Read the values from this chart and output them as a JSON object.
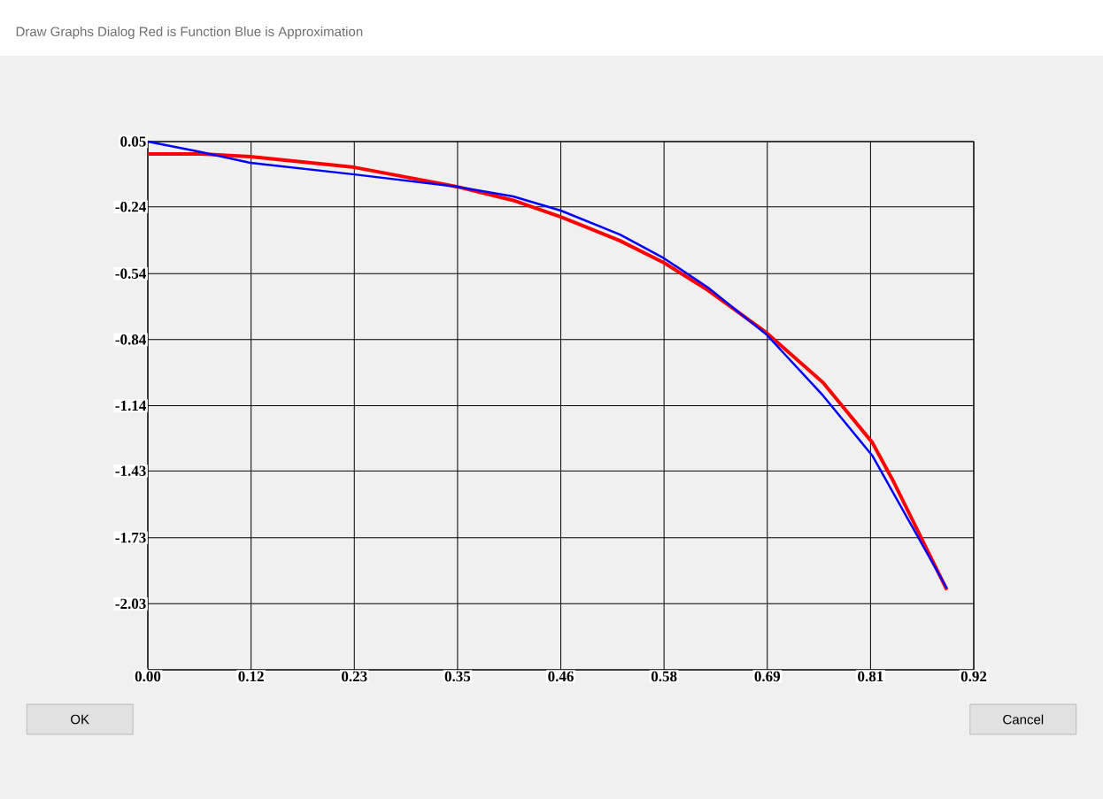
{
  "chart_data": {
    "type": "line",
    "title": "Draw Graphs Dialog Red is Function Blue is Approximation",
    "annotations": [
      "OK",
      "Cancel"
    ],
    "xlim": [
      0,
      0.92
    ],
    "ylim": [
      -2.33,
      0.05
    ],
    "xticks": [
      {
        "value": 0,
        "label": "0.00"
      },
      {
        "value": 0.115,
        "label": "0.12"
      },
      {
        "value": 0.23,
        "label": "0.23"
      },
      {
        "value": 0.345,
        "label": "0.35"
      },
      {
        "value": 0.46,
        "label": "0.46"
      },
      {
        "value": 0.575,
        "label": "0.58"
      },
      {
        "value": 0.69,
        "label": "0.69"
      },
      {
        "value": 0.805,
        "label": "0.81"
      },
      {
        "value": 0.92,
        "label": "0.92"
      }
    ],
    "yticks": [
      {
        "value": 0.05,
        "label": "0.05"
      },
      {
        "value": -0.244,
        "label": "-0.24"
      },
      {
        "value": -0.545,
        "label": "-0.54"
      },
      {
        "value": -0.8425,
        "label": "-0.84"
      },
      {
        "value": -1.14,
        "label": "-1.14"
      },
      {
        "value": -1.434,
        "label": "-1.43"
      },
      {
        "value": -1.735,
        "label": "-1.73"
      },
      {
        "value": -2.0325,
        "label": "-2.03"
      },
      {
        "value": -2.33,
        "label": null
      }
    ],
    "grid": true,
    "series": [
      {
        "color": "#ff0000",
        "x": [
          0,
          0.06,
          0.114,
          0.23,
          0.344,
          0.407,
          0.46,
          0.526,
          0.575,
          0.624,
          0.689,
          0.752,
          0.807,
          0.831,
          0.89
        ],
        "values": [
          -0.006,
          -0.006,
          -0.018,
          -0.066,
          -0.153,
          -0.215,
          -0.289,
          -0.397,
          -0.496,
          -0.62,
          -0.811,
          -1.035,
          -1.306,
          -1.485,
          -1.97
        ]
      },
      {
        "color": "#0000ff",
        "x": [
          0,
          0.06,
          0.114,
          0.23,
          0.344,
          0.407,
          0.46,
          0.526,
          0.575,
          0.624,
          0.689,
          0.752,
          0.807,
          0.89
        ],
        "values": [
          0.05,
          0.002,
          -0.046,
          -0.098,
          -0.153,
          -0.197,
          -0.261,
          -0.369,
          -0.476,
          -0.608,
          -0.819,
          -1.094,
          -1.365,
          -1.963
        ]
      }
    ]
  }
}
